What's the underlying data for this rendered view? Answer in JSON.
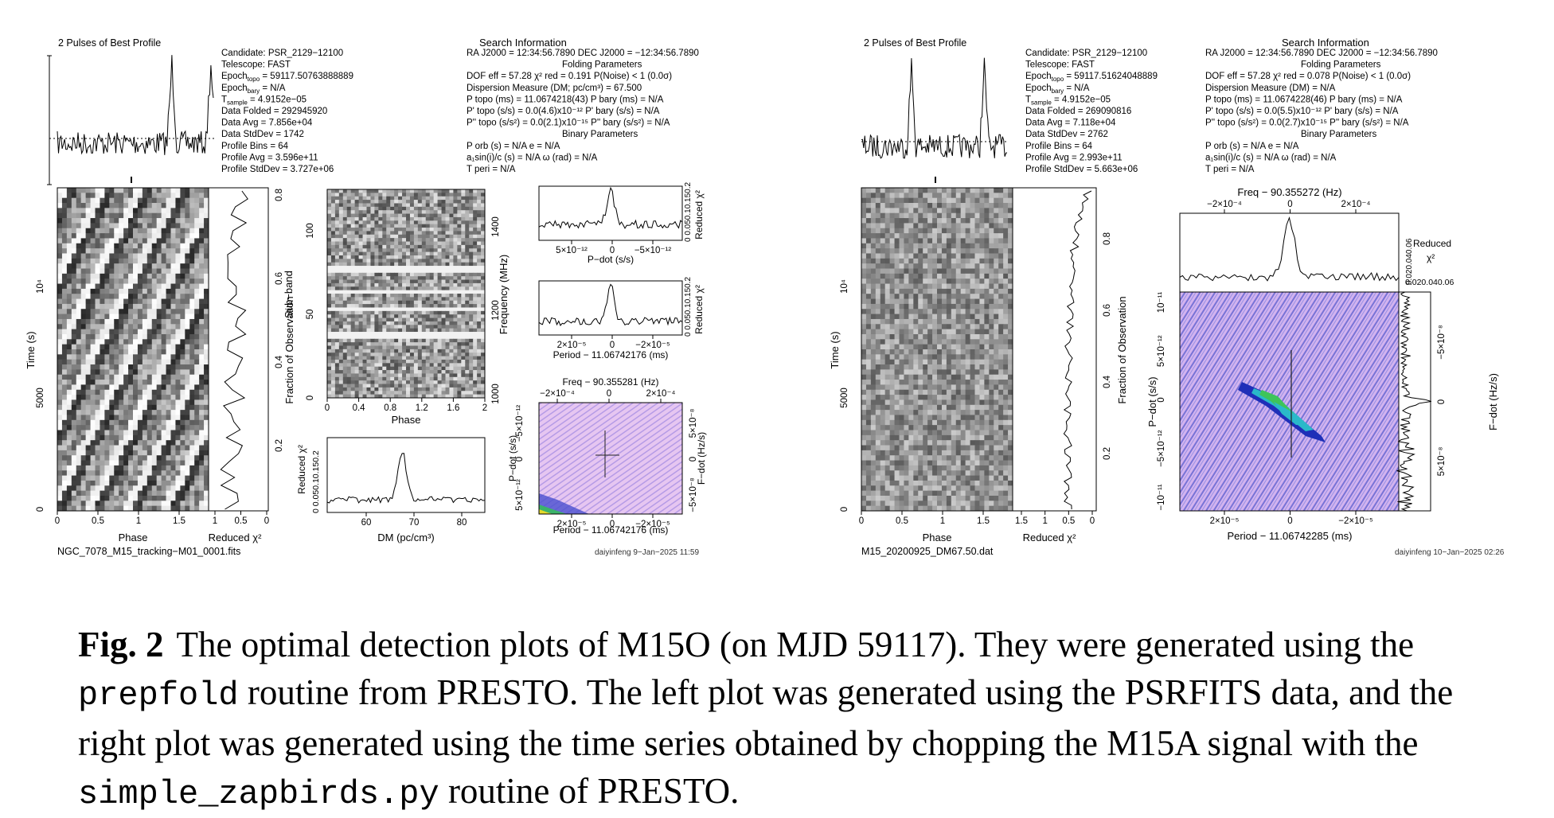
{
  "left": {
    "profile_title": "2 Pulses of Best Profile",
    "info": [
      [
        "Candidate:  PSR_2129−12100",
        ""
      ],
      [
        "Telescope:  FAST",
        ""
      ],
      [
        "Epoch",
        "topo",
        " = 59117.50763888889"
      ],
      [
        "Epoch",
        "bary",
        " = N/A"
      ],
      [
        "T",
        "sample",
        "        =  4.9152e−05"
      ],
      [
        "Data Folded",
        "",
        "      =  292945920"
      ],
      [
        "Data Avg",
        "",
        "         =  7.856e+04"
      ],
      [
        "Data StdDev",
        "",
        "      =  1742"
      ],
      [
        "Profile Bins",
        "",
        "      =  64"
      ],
      [
        "Profile Avg",
        "",
        "      =  3.596e+11"
      ],
      [
        "Profile StdDev",
        "",
        "   =  3.727e+06"
      ]
    ],
    "search_title": "Search Information",
    "search": [
      "RA J2000 = 12:34:56.7890          DEC J2000 = −12:34:56.7890",
      "Folding Parameters",
      "DOF eff = 57.28  χ² red = 0.191  P(Noise) < 1  (0.0σ)",
      "Dispersion Measure (DM; pc/cm³) = 67.500",
      "P topo (ms) = 11.0674218(43)      P bary (ms) = N/A",
      "P' topo (s/s) = 0.0(4.6)x10⁻¹²     P' bary (s/s) = N/A",
      "P'' topo (s/s²) = 0.0(2.1)x10⁻¹⁵   P'' bary (s/s²) = N/A",
      "Binary Parameters",
      "P orb (s) = N/A                   e = N/A",
      "a₁sin(i)/c (s) = N/A            ω (rad) = N/A",
      "T peri = N/A"
    ],
    "time_label": "Time (s)",
    "time_ticks": [
      "0",
      "5000",
      "10⁴"
    ],
    "phase_label": "Phase",
    "phase_ticks": [
      "0",
      "0.5",
      "1",
      "1.5"
    ],
    "redchi_label": "Reduced χ²",
    "redchi_ticks": [
      "1",
      "0.5",
      "0"
    ],
    "frac_label": "Fraction of Observation",
    "frac_ticks": [
      "0.2",
      "0.4",
      "0.6",
      "0.8"
    ],
    "subband_label": "Sub−band",
    "subband_ticks": [
      "0",
      "50",
      "100"
    ],
    "freq_label": "Frequency (MHz)",
    "freq_ticks": [
      "1000",
      "1200",
      "1400"
    ],
    "sub_phase_ticks": [
      "0",
      "0.4",
      "0.8",
      "1.2",
      "1.6",
      "2"
    ],
    "dm_label": "DM (pc/cm³)",
    "dm_ticks": [
      "60",
      "70",
      "80"
    ],
    "dm_redchi_ticks": "0  0.050.10.150.2",
    "pdot_label": "P−dot (s/s)",
    "pdot_ticks": [
      "5×10⁻¹²",
      "0",
      "−5×10⁻¹²"
    ],
    "period_label": "Period − 11.06742176 (ms)",
    "period_ticks": [
      "2×10⁻⁵",
      "0",
      "−2×10⁻⁵"
    ],
    "small_redchi_ticks": "0  0.050.10.150.2",
    "freq_top_label": "Freq − 90.355281 (Hz)",
    "freq_top_ticks": [
      "−2×10⁻⁴",
      "0",
      "2×10⁻⁴"
    ],
    "fdot_label": "F−dot (Hz/s)",
    "fdot_ticks": [
      "5×10⁻⁸",
      "0",
      "−5×10⁻⁸"
    ],
    "pdot_2d_ticks": [
      "−5×10⁻¹²",
      "0",
      "5×10⁻¹²"
    ],
    "file_name": "NGC_7078_M15_tracking−M01_0001.fits",
    "signature": "daiyinfeng   9−Jan−2025 11:59"
  },
  "right": {
    "profile_title": "2 Pulses of Best Profile",
    "info": [
      [
        "Candidate:  PSR_2129−12100",
        ""
      ],
      [
        "Telescope:  FAST",
        ""
      ],
      [
        "Epoch",
        "topo",
        " = 59117.51624048889"
      ],
      [
        "Epoch",
        "bary",
        " = N/A"
      ],
      [
        "T",
        "sample",
        "        =  4.9152e−05"
      ],
      [
        "Data Folded",
        "",
        "      =  269090816"
      ],
      [
        "Data Avg",
        "",
        "         =  7.118e+04"
      ],
      [
        "Data StdDev",
        "",
        "      =  2762"
      ],
      [
        "Profile Bins",
        "",
        "      =  64"
      ],
      [
        "Profile Avg",
        "",
        "      =  2.993e+11"
      ],
      [
        "Profile StdDev",
        "",
        "   =  5.663e+06"
      ]
    ],
    "search_title": "Search Information",
    "search": [
      "RA J2000 = 12:34:56.7890          DEC J2000 = −12:34:56.7890",
      "Folding Parameters",
      "DOF eff = 57.28  χ² red = 0.078  P(Noise) < 1  (0.0σ)",
      "Dispersion Measure (DM) = N/A",
      "P topo (ms) = 11.0674228(46)      P bary (ms) = N/A",
      "P' topo (s/s) = 0.0(5.5)x10⁻¹²     P' bary (s/s) = N/A",
      "P'' topo (s/s²) = 0.0(2.7)x10⁻¹⁵   P'' bary (s/s²) = N/A",
      "Binary Parameters",
      "P orb (s) = N/A                   e = N/A",
      "a₁sin(i)/c (s) = N/A            ω (rad) = N/A",
      "T peri = N/A"
    ],
    "time_label": "Time (s)",
    "time_ticks": [
      "0",
      "5000",
      "10⁴"
    ],
    "phase_label": "Phase",
    "phase_ticks": [
      "0",
      "0.5",
      "1",
      "1.5"
    ],
    "redchi_label": "Reduced χ²",
    "redchi_ticks": [
      "1.5",
      "1",
      "0.5",
      "0"
    ],
    "frac_label": "Fraction of Observation",
    "frac_ticks": [
      "0.2",
      "0.4",
      "0.6",
      "0.8"
    ],
    "freq_top_label": "Freq − 90.355272 (Hz)",
    "freq_top_ticks": [
      "−2×10⁻⁴",
      "0",
      "2×10⁻⁴"
    ],
    "top_redchi_label": "Reduced",
    "top_redchi_chi": "χ²",
    "top_redchi_ticks": "0.020.040.06",
    "pdot_label": "P−dot (s/s)",
    "pdot_ticks": [
      "10⁻¹¹",
      "5×10⁻¹²",
      "0",
      "−5×10⁻¹²",
      "−10⁻¹¹"
    ],
    "fdot_label": "F−dot (Hz/s)",
    "fdot_ticks": [
      "−5×10⁻⁸",
      "0",
      "5×10⁻⁸"
    ],
    "period_label": "Period − 11.06742285 (ms)",
    "period_ticks": [
      "2×10⁻⁵",
      "0",
      "−2×10⁻⁵"
    ],
    "file_name": "M15_20200925_DM67.50.dat",
    "signature": "daiyinfeng 10−Jan−2025 02:26"
  },
  "caption": {
    "label": "Fig. 2",
    "parts": [
      "The optimal detection plots of M15O (on MJD 59117). They were generated using the ",
      "prepfold",
      " routine from PRESTO. The left plot was generated using the PSRFITS data, and the right plot was generated using the time series obtained by chopping the M15A signal with the ",
      "simple_zapbirds.py",
      " routine of PRESTO."
    ]
  }
}
